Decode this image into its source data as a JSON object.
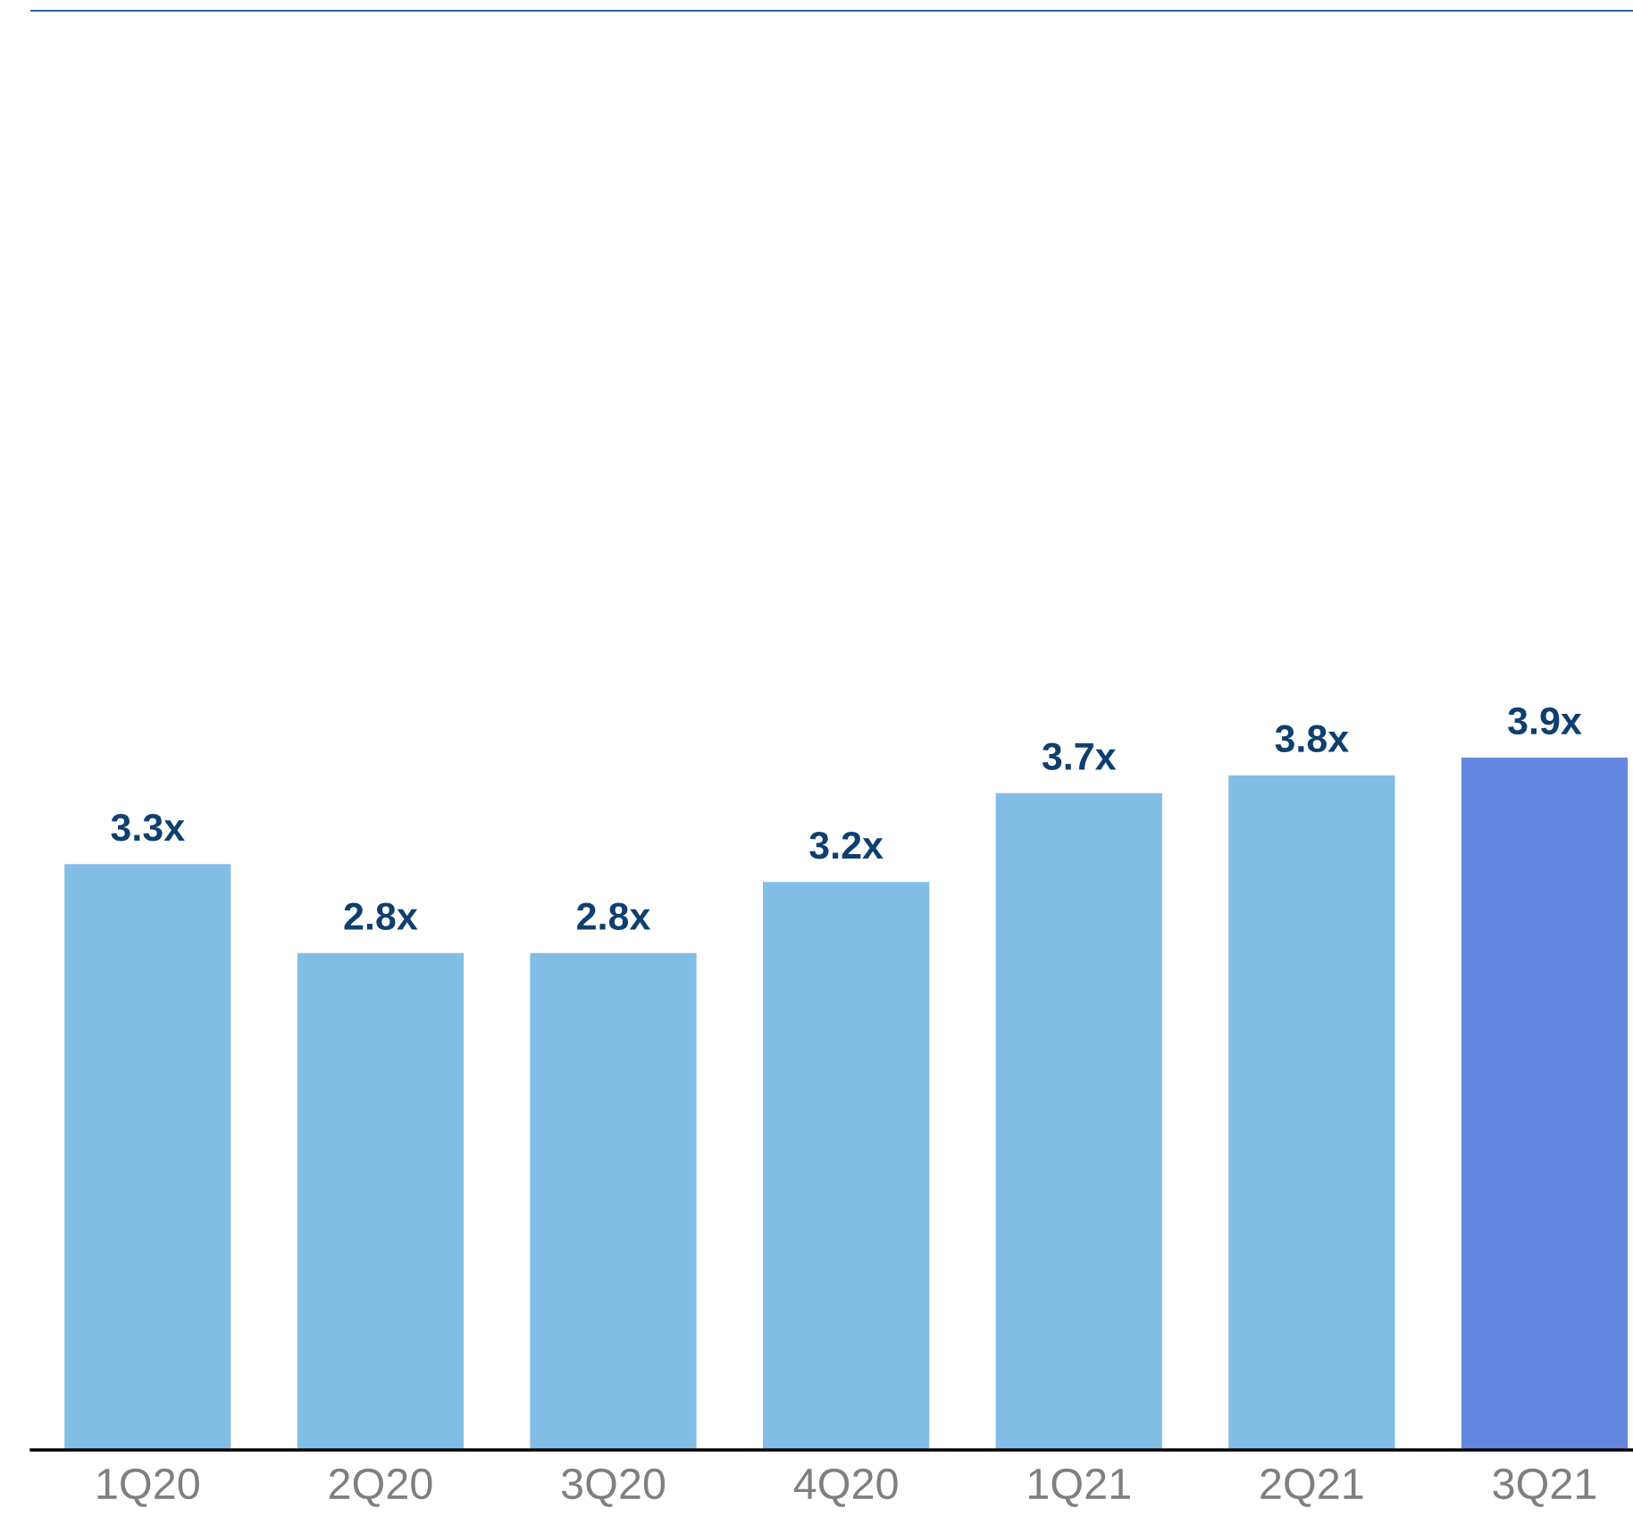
{
  "chart_data": {
    "type": "bar",
    "categories": [
      "1Q20",
      "2Q20",
      "3Q20",
      "4Q20",
      "1Q21",
      "2Q21",
      "3Q21"
    ],
    "values": [
      3.3,
      2.8,
      2.8,
      3.2,
      3.7,
      3.8,
      3.9
    ],
    "value_labels": [
      "3.3x",
      "2.8x",
      "2.8x",
      "3.2x",
      "3.7x",
      "3.8x",
      "3.9x"
    ],
    "colors": [
      "#82bde6",
      "#82bde6",
      "#82bde6",
      "#82bde6",
      "#82bde6",
      "#82bde6",
      "#6488e0"
    ],
    "ylim": [
      0,
      8.1
    ],
    "tick_labels": "x",
    "grid": false,
    "legend": false
  }
}
